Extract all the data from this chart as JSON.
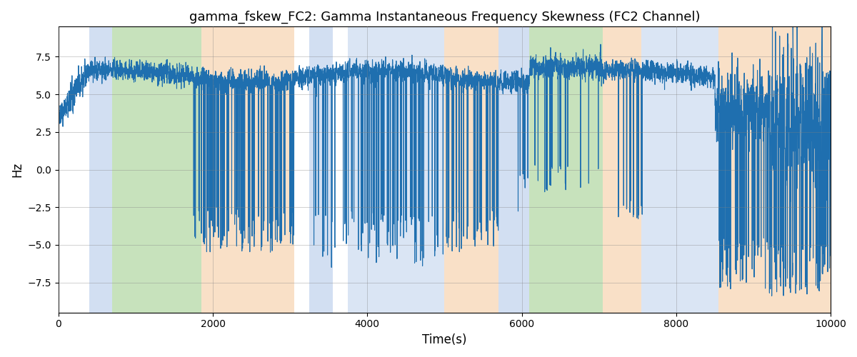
{
  "title": "gamma_fskew_FC2: Gamma Instantaneous Frequency Skewness (FC2 Channel)",
  "xlabel": "Time(s)",
  "ylabel": "Hz",
  "xlim": [
    0,
    10000
  ],
  "ylim": [
    -9.5,
    9.5
  ],
  "yticks": [
    -7.5,
    -5.0,
    -2.5,
    0.0,
    2.5,
    5.0,
    7.5
  ],
  "xticks": [
    0,
    2000,
    4000,
    6000,
    8000,
    10000
  ],
  "line_color": "#1f6faf",
  "line_width": 0.8,
  "bg_bands": [
    {
      "xmin": 400,
      "xmax": 700,
      "color": "#aec6e8",
      "alpha": 0.55
    },
    {
      "xmin": 700,
      "xmax": 1850,
      "color": "#90c77a",
      "alpha": 0.5
    },
    {
      "xmin": 1850,
      "xmax": 3050,
      "color": "#f5c89a",
      "alpha": 0.55
    },
    {
      "xmin": 3250,
      "xmax": 3550,
      "color": "#aec6e8",
      "alpha": 0.55
    },
    {
      "xmin": 3750,
      "xmax": 5000,
      "color": "#aec6e8",
      "alpha": 0.45
    },
    {
      "xmin": 5000,
      "xmax": 5700,
      "color": "#f5c89a",
      "alpha": 0.55
    },
    {
      "xmin": 5700,
      "xmax": 6100,
      "color": "#aec6e8",
      "alpha": 0.55
    },
    {
      "xmin": 6100,
      "xmax": 7050,
      "color": "#90c77a",
      "alpha": 0.5
    },
    {
      "xmin": 7050,
      "xmax": 7550,
      "color": "#f5c89a",
      "alpha": 0.55
    },
    {
      "xmin": 7550,
      "xmax": 8550,
      "color": "#aec6e8",
      "alpha": 0.45
    },
    {
      "xmin": 8550,
      "xmax": 10100,
      "color": "#f5c89a",
      "alpha": 0.55
    }
  ],
  "figsize": [
    12,
    5
  ],
  "dpi": 100
}
